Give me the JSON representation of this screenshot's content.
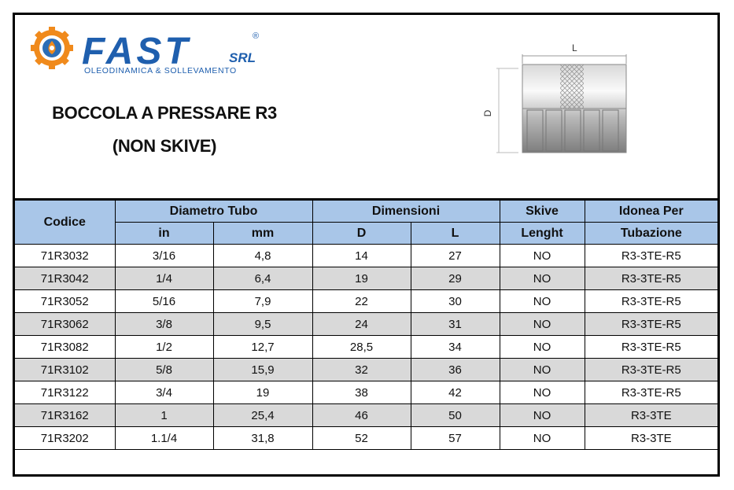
{
  "logo": {
    "name": "FAST",
    "registered": "®",
    "suffix": "SRL",
    "tagline": "OLEODINAMICA & SOLLEVAMENTO"
  },
  "title": [
    "BOCCOLA A PRESSARE R3",
    "(NON SKIVE)"
  ],
  "drawing": {
    "length_label": "L",
    "diameter_label": "D"
  },
  "table": {
    "header_top": [
      "Codice",
      "Diametro Tubo",
      "Dimensioni",
      "Skive",
      "Idonea Per"
    ],
    "header_sub": [
      "in",
      "mm",
      "D",
      "L",
      "Lenght",
      "Tubazione"
    ],
    "rows": [
      [
        "71R3032",
        "3/16",
        "4,8",
        "14",
        "27",
        "NO",
        "R3-3TE-R5"
      ],
      [
        "71R3042",
        "1/4",
        "6,4",
        "19",
        "29",
        "NO",
        "R3-3TE-R5"
      ],
      [
        "71R3052",
        "5/16",
        "7,9",
        "22",
        "30",
        "NO",
        "R3-3TE-R5"
      ],
      [
        "71R3062",
        "3/8",
        "9,5",
        "24",
        "31",
        "NO",
        "R3-3TE-R5"
      ],
      [
        "71R3082",
        "1/2",
        "12,7",
        "28,5",
        "34",
        "NO",
        "R3-3TE-R5"
      ],
      [
        "71R3102",
        "5/8",
        "15,9",
        "32",
        "36",
        "NO",
        "R3-3TE-R5"
      ],
      [
        "71R3122",
        "3/4",
        "19",
        "38",
        "42",
        "NO",
        "R3-3TE-R5"
      ],
      [
        "71R3162",
        "1",
        "25,4",
        "46",
        "50",
        "NO",
        "R3-3TE"
      ],
      [
        "71R3202",
        "1.1/4",
        "31,8",
        "52",
        "57",
        "NO",
        "R3-3TE"
      ]
    ]
  }
}
